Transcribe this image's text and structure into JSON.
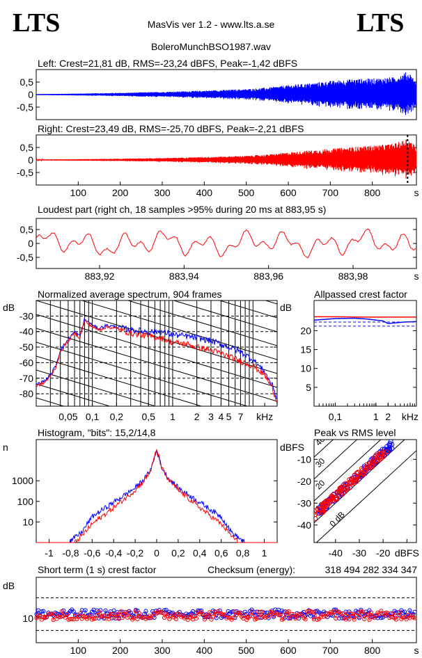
{
  "header": {
    "logo_left": "LTS",
    "logo_right": "LTS",
    "app_title": "MasVis ver 1.2 - www.lts.a.se",
    "file_name": "BoleroMunchBSO1987.wav"
  },
  "chart_data": [
    {
      "id": "left-channel",
      "type": "area",
      "title": "Left: Crest=21,81 dB, RMS=-23,24 dBFS, Peak=-1,42 dBFS",
      "yticks": [
        "0,5",
        "0",
        "-0,5"
      ],
      "ytick_values": [
        0.5,
        0,
        -0.5
      ],
      "ylim": [
        -1,
        1
      ],
      "xlim": [
        0,
        905
      ],
      "series": [
        {
          "color": "#0000ff",
          "x": [
            0,
            100,
            200,
            300,
            400,
            500,
            550,
            600,
            650,
            700,
            750,
            800,
            850,
            870,
            880,
            890,
            905
          ],
          "envelope": [
            0.02,
            0.04,
            0.07,
            0.11,
            0.16,
            0.22,
            0.28,
            0.38,
            0.45,
            0.55,
            0.62,
            0.65,
            0.7,
            0.82,
            0.9,
            0.85,
            0.5
          ]
        }
      ]
    },
    {
      "id": "right-channel",
      "type": "area",
      "title": "Right: Crest=23,49 dB, RMS=-25,70 dBFS, Peak=-2,21 dBFS",
      "yticks": [
        "0,5",
        "0",
        "-0,5"
      ],
      "ytick_values": [
        0.5,
        0,
        -0.5
      ],
      "ylim": [
        -1,
        1
      ],
      "xlim": [
        0,
        905
      ],
      "xticks": [
        "100",
        "200",
        "300",
        "400",
        "500",
        "600",
        "700",
        "800",
        "s"
      ],
      "xtick_values": [
        100,
        200,
        300,
        400,
        500,
        600,
        700,
        800,
        905
      ],
      "marker_x": 883.95,
      "series": [
        {
          "color": "#ff0000",
          "x": [
            0,
            100,
            200,
            300,
            400,
            500,
            550,
            600,
            650,
            700,
            750,
            800,
            850,
            870,
            880,
            890,
            905
          ],
          "envelope": [
            0.02,
            0.03,
            0.05,
            0.08,
            0.12,
            0.17,
            0.22,
            0.3,
            0.38,
            0.45,
            0.52,
            0.58,
            0.65,
            0.75,
            0.88,
            0.8,
            0.5
          ]
        }
      ]
    },
    {
      "id": "loudest-part",
      "type": "line",
      "title": "Loudest part (right ch, 18 samples >95% during 20 ms at 883,95 s)",
      "yticks": [
        "0,5",
        "0",
        "-0,5"
      ],
      "ytick_values": [
        0.5,
        0,
        -0.5
      ],
      "ylim": [
        -0.9,
        0.9
      ],
      "xlim": [
        883.905,
        883.995
      ],
      "xticks": [
        "883,92",
        "883,94",
        "883,96",
        "883,98",
        "s"
      ],
      "xtick_values": [
        883.92,
        883.94,
        883.96,
        883.98,
        883.995
      ],
      "series": [
        {
          "color": "#ff0000"
        }
      ]
    },
    {
      "id": "avg-spectrum",
      "type": "line",
      "title": "Normalized average spectrum, 904 frames",
      "ylabel": "dB",
      "xlabel": "kHz",
      "yticks": [
        "-30",
        "-40",
        "-50",
        "-60",
        "-70",
        "-80"
      ],
      "ytick_values": [
        -30,
        -40,
        -50,
        -60,
        -70,
        -80
      ],
      "ylim": [
        -88,
        -20
      ],
      "xticks": [
        "0,05",
        "0,1",
        "0,2",
        "0,5",
        "1",
        "2",
        "3",
        "4",
        "5",
        "7",
        "kHz"
      ],
      "xtick_values": [
        0.05,
        0.1,
        0.2,
        0.5,
        1,
        2,
        3,
        4,
        5,
        7,
        14
      ],
      "xlim": [
        0.02,
        20
      ],
      "log_x": true,
      "grid": true,
      "series": [
        {
          "color": "#0000ff",
          "x": [
            0.02,
            0.025,
            0.03,
            0.035,
            0.04,
            0.05,
            0.06,
            0.07,
            0.08,
            0.1,
            0.12,
            0.15,
            0.2,
            0.3,
            0.5,
            0.7,
            1,
            1.5,
            2,
            3,
            4,
            5,
            7,
            10,
            14,
            18,
            20
          ],
          "y": [
            -74,
            -72,
            -68,
            -62,
            -52,
            -45,
            -40,
            -43,
            -32,
            -36,
            -38,
            -36,
            -37,
            -39,
            -40,
            -40,
            -42,
            -43,
            -44,
            -46,
            -48,
            -50,
            -53,
            -58,
            -66,
            -76,
            -84
          ]
        },
        {
          "color": "#ff0000",
          "x": [
            0.02,
            0.025,
            0.03,
            0.035,
            0.04,
            0.05,
            0.06,
            0.07,
            0.08,
            0.1,
            0.12,
            0.15,
            0.2,
            0.3,
            0.5,
            0.7,
            1,
            1.5,
            2,
            3,
            4,
            5,
            7,
            10,
            14,
            18,
            20
          ],
          "y": [
            -75,
            -73,
            -69,
            -63,
            -53,
            -46,
            -41,
            -44,
            -33,
            -37,
            -39,
            -37,
            -38,
            -41,
            -43,
            -44,
            -47,
            -48,
            -50,
            -52,
            -54,
            -56,
            -59,
            -62,
            -68,
            -78,
            -86
          ]
        }
      ]
    },
    {
      "id": "allpassed-crest",
      "type": "line",
      "title": "Allpassed crest factor",
      "ylabel": "dB",
      "xlabel": "kHz",
      "yticks": [
        "20",
        "15",
        "10",
        "5"
      ],
      "ytick_values": [
        20,
        15,
        10,
        5
      ],
      "ylim": [
        0,
        28
      ],
      "xticks": [
        "0,1",
        "1",
        "2",
        "kHz"
      ],
      "xtick_values": [
        0.1,
        1,
        2,
        7
      ],
      "xlim": [
        0.03,
        10
      ],
      "log_x": true,
      "ref_lines": [
        22.3,
        21.2
      ],
      "series": [
        {
          "color": "#ff0000",
          "x": [
            0.03,
            0.1,
            0.5,
            1,
            2,
            5,
            10
          ],
          "y": [
            23.7,
            23.7,
            23.6,
            23.6,
            23.6,
            23.6,
            23.6
          ]
        },
        {
          "color": "#0000ff",
          "x": [
            0.03,
            0.1,
            0.3,
            0.6,
            1,
            1.5,
            2,
            5,
            10
          ],
          "y": [
            22.8,
            23.2,
            23.3,
            23.1,
            22.8,
            22.6,
            21.9,
            22.3,
            22.4
          ]
        }
      ]
    },
    {
      "id": "histogram",
      "type": "line",
      "title": "Histogram, \"bits\": 15,2/14,8",
      "ylabel": "n",
      "yticks": [
        "1000",
        "100",
        "10"
      ],
      "ytick_values": [
        1000,
        100,
        10
      ],
      "ylim": [
        1,
        100000
      ],
      "log_y": true,
      "xticks": [
        "-1",
        "-0,8",
        "-0,6",
        "-0,4",
        "-0,2",
        "0",
        "0,2",
        "0,4",
        "0,6",
        "0,8",
        "1"
      ],
      "xtick_values": [
        -1,
        -0.8,
        -0.6,
        -0.4,
        -0.2,
        0,
        0.2,
        0.4,
        0.6,
        0.8,
        1
      ],
      "xlim": [
        -1.12,
        1.12
      ],
      "series": [
        {
          "color": "#0000ff",
          "x": [
            -0.82,
            -0.7,
            -0.6,
            -0.4,
            -0.2,
            -0.1,
            -0.05,
            0,
            0.05,
            0.1,
            0.2,
            0.4,
            0.6,
            0.7,
            0.82
          ],
          "y": [
            1,
            3,
            18,
            90,
            450,
            1500,
            4000,
            30000,
            4000,
            1500,
            450,
            90,
            18,
            3,
            1
          ]
        },
        {
          "color": "#ff0000",
          "x": [
            -0.76,
            -0.7,
            -0.6,
            -0.4,
            -0.2,
            -0.1,
            -0.05,
            0,
            0.05,
            0.1,
            0.2,
            0.4,
            0.6,
            0.7,
            0.76
          ],
          "y": [
            1,
            2,
            8,
            50,
            350,
            1300,
            3800,
            35000,
            3800,
            1300,
            350,
            50,
            8,
            2,
            1
          ]
        }
      ]
    },
    {
      "id": "peak-vs-rms",
      "type": "scatter",
      "title": "Peak vs RMS level",
      "ylabel": "dBFS",
      "xlabel": "dBFS",
      "yticks": [
        "-10",
        "-20",
        "-30",
        "-40"
      ],
      "ytick_values": [
        -10,
        -20,
        -30,
        -40
      ],
      "ylim": [
        -48,
        -1
      ],
      "xticks": [
        "-40",
        "-30",
        "-20",
        "dBFS"
      ],
      "xtick_values": [
        -40,
        -30,
        -20,
        -10
      ],
      "xlim": [
        -49,
        -6
      ],
      "diagonals": [
        {
          "label": "40",
          "crest_db": 40
        },
        {
          "label": "30",
          "crest_db": 30
        },
        {
          "label": "20",
          "crest_db": 20
        },
        {
          "label": "10",
          "crest_db": 10
        },
        {
          "label": "0 dB",
          "crest_db": 0
        }
      ],
      "series": [
        {
          "color": "#0000ff",
          "rms_range": [
            -47,
            -16
          ],
          "crest_db": 13
        },
        {
          "color": "#ff0000",
          "rms_range": [
            -49,
            -18
          ],
          "crest_db": 13
        }
      ]
    },
    {
      "id": "short-term-crest",
      "type": "scatter",
      "title": "Short term (1 s) crest factor",
      "checksum_label": "Checksum (energy):",
      "checksum_value": "318 494 282 334 347",
      "ylabel": "dB",
      "yticks": [
        "10"
      ],
      "ytick_values": [
        10
      ],
      "ylim": [
        4,
        20
      ],
      "ref_lines": [
        15,
        7
      ],
      "xticks": [
        "100",
        "200",
        "300",
        "400",
        "500",
        "600",
        "700",
        "800",
        "s"
      ],
      "xtick_values": [
        100,
        200,
        300,
        400,
        500,
        600,
        700,
        800,
        905
      ],
      "xlim": [
        0,
        905
      ],
      "series": [
        {
          "color": "#0000ff",
          "mean": 11
        },
        {
          "color": "#ff0000",
          "mean": 10.7
        }
      ]
    }
  ]
}
